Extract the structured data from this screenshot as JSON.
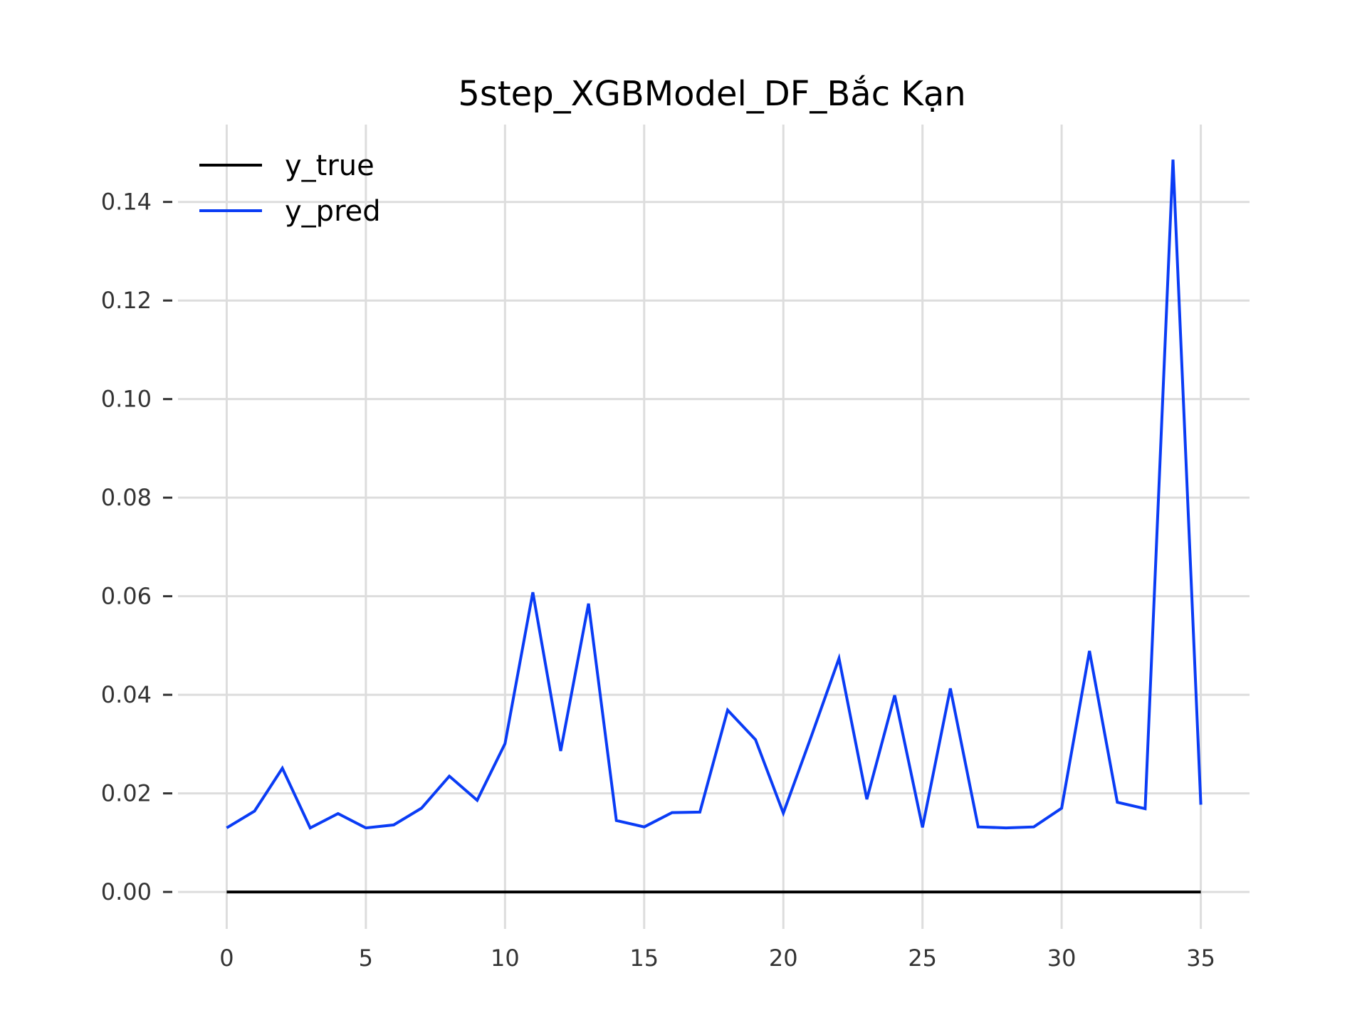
{
  "chart_data": {
    "type": "line",
    "title": "5step_XGBModel_DF_Bắc Kạn",
    "xlabel": "",
    "ylabel": "",
    "xlim": [
      -1.75,
      36.75
    ],
    "ylim": [
      -0.0075,
      0.1557
    ],
    "x_ticks": [
      0,
      5,
      10,
      15,
      20,
      25,
      30,
      35
    ],
    "x_tick_labels": [
      "0",
      "5",
      "10",
      "15",
      "20",
      "25",
      "30",
      "35"
    ],
    "y_ticks": [
      0.0,
      0.02,
      0.04,
      0.06,
      0.08,
      0.1,
      0.12,
      0.14
    ],
    "y_tick_labels": [
      "0.00",
      "0.02",
      "0.04",
      "0.06",
      "0.08",
      "0.10",
      "0.12",
      "0.14"
    ],
    "grid": true,
    "legend_position": "top-left",
    "x": [
      0,
      1,
      2,
      3,
      4,
      5,
      6,
      7,
      8,
      9,
      10,
      11,
      12,
      13,
      14,
      15,
      16,
      17,
      18,
      19,
      20,
      21,
      22,
      23,
      24,
      25,
      26,
      27,
      28,
      29,
      30,
      31,
      32,
      33,
      34,
      35
    ],
    "series": [
      {
        "name": "y_true",
        "color": "#000000",
        "values": [
          0,
          0,
          0,
          0,
          0,
          0,
          0,
          0,
          0,
          0,
          0,
          0,
          0,
          0,
          0,
          0,
          0,
          0,
          0,
          0,
          0,
          0,
          0,
          0,
          0,
          0,
          0,
          0,
          0,
          0,
          0,
          0,
          0,
          0,
          0,
          0
        ]
      },
      {
        "name": "y_pred",
        "color": "#0a3cf5",
        "values": [
          0.013,
          0.0164,
          0.0251,
          0.013,
          0.0159,
          0.013,
          0.0136,
          0.017,
          0.0235,
          0.0186,
          0.0301,
          0.0608,
          0.0286,
          0.0585,
          0.0145,
          0.0132,
          0.0161,
          0.0162,
          0.0369,
          0.0309,
          0.016,
          0.0315,
          0.0474,
          0.0188,
          0.0399,
          0.0131,
          0.0413,
          0.0132,
          0.013,
          0.0132,
          0.017,
          0.0489,
          0.0182,
          0.0169,
          0.1486,
          0.0177
        ]
      }
    ]
  }
}
